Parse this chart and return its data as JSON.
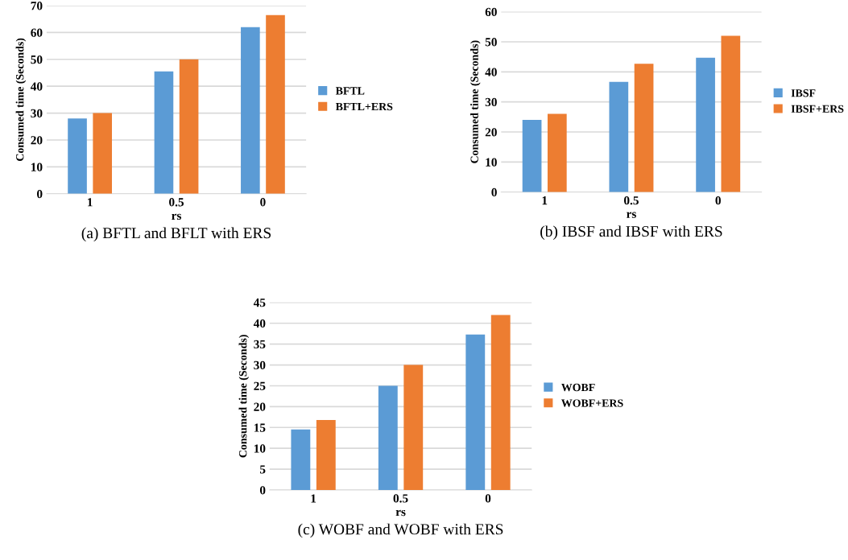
{
  "chart_data": [
    {
      "type": "bar",
      "xlabel": "rs",
      "ylabel": "Consumed time (Seconds)",
      "categories": [
        "1",
        "0.5",
        "0"
      ],
      "series": [
        {
          "name": "BFTL",
          "color": "#5b9bd5",
          "values": [
            28,
            45.5,
            62
          ]
        },
        {
          "name": "BFTL+ERS",
          "color": "#ed7d31",
          "values": [
            30,
            50,
            66.5
          ]
        }
      ],
      "ylim": [
        0,
        70
      ],
      "yticks": [
        0,
        10,
        20,
        30,
        40,
        50,
        60,
        70
      ],
      "grid": "y",
      "legend": "right",
      "annotations": [
        "(a) BFTL and BFLT with ERS"
      ]
    },
    {
      "type": "bar",
      "xlabel": "rs",
      "ylabel": "Consumed time (Seconds)",
      "categories": [
        "1",
        "0.5",
        "0"
      ],
      "series": [
        {
          "name": "IBSF",
          "color": "#5b9bd5",
          "values": [
            24,
            36.7,
            44.7
          ]
        },
        {
          "name": "IBSF+ERS",
          "color": "#ed7d31",
          "values": [
            26,
            42.7,
            52
          ]
        }
      ],
      "ylim": [
        0,
        60
      ],
      "yticks": [
        0,
        10,
        20,
        30,
        40,
        50,
        60
      ],
      "grid": "y",
      "legend": "right",
      "annotations": [
        "(b) IBSF and IBSF with ERS"
      ]
    },
    {
      "type": "bar",
      "xlabel": "rs",
      "ylabel": "Consumed time (Seconds)",
      "categories": [
        "1",
        "0.5",
        "0"
      ],
      "series": [
        {
          "name": "WOBF",
          "color": "#5b9bd5",
          "values": [
            14.5,
            25,
            37.3
          ]
        },
        {
          "name": "WOBF+ERS",
          "color": "#ed7d31",
          "values": [
            16.8,
            30,
            42
          ]
        }
      ],
      "ylim": [
        0,
        45
      ],
      "yticks": [
        0,
        5,
        10,
        15,
        20,
        25,
        30,
        35,
        40,
        45
      ],
      "grid": "y",
      "legend": "right",
      "annotations": [
        "(c) WOBF and WOBF with ERS"
      ]
    }
  ]
}
